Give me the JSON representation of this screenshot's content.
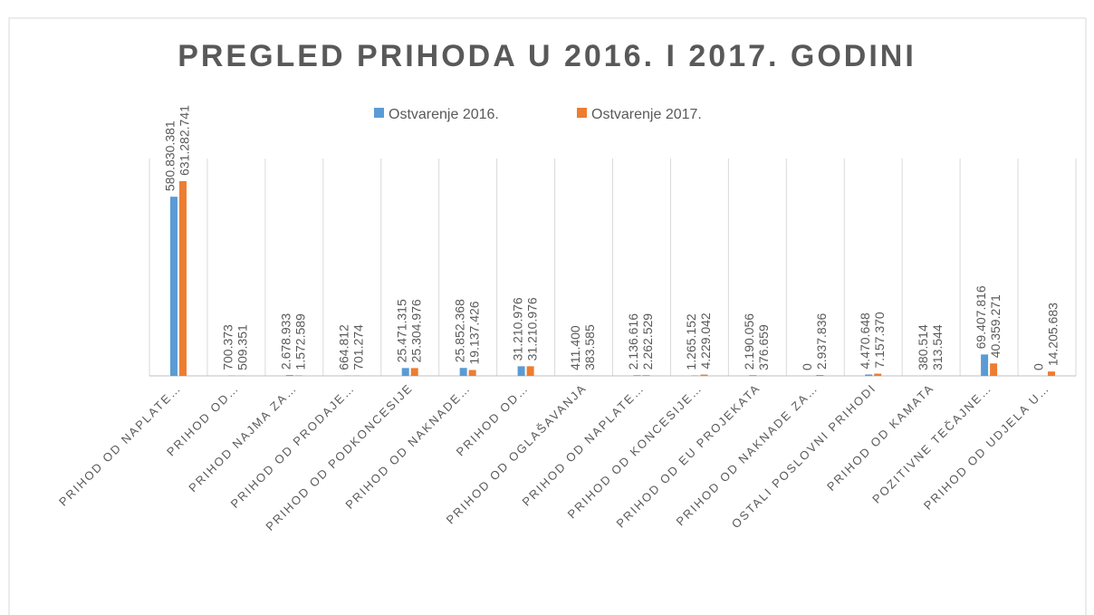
{
  "chart_data": {
    "type": "bar",
    "title": "PREGLED PRIHODA U 2016. I 2017. GODINI",
    "categories": [
      "PRIHOD OD NAPLATE…",
      "PRIHOD OD…",
      "PRIHOD NAJMA ZA…",
      "PRIHOD OD PRODAJE…",
      "PRIHOD OD PODKONCESIJE",
      "PRIHOD OD NAKNADE…",
      "PRIHOD OD…",
      "PRIHOD OD OGLAŠAVANJA",
      "PRIHOD OD NAPLATE…",
      "PRIHOD OD KONCESIJE…",
      "PRIHOD OD EU PROJEKATA",
      "PRIHOD OD NAKNADE ZA…",
      "OSTALI POSLOVNI PRIHODI",
      "PRIHOD OD KAMATA",
      "POZITIVNE TEČAJNE…",
      "PRIHOD OD UDJELA U…"
    ],
    "series": [
      {
        "name": "Ostvarenje 2016.",
        "color": "#5b9bd5",
        "values": [
          580830381,
          700373,
          2678933,
          664812,
          25471315,
          25852368,
          31210976,
          411400,
          2136616,
          1265152,
          2190056,
          0,
          4470648,
          380514,
          69407816,
          0
        ],
        "value_labels": [
          "580.830.381",
          "700.373",
          "2.678.933",
          "664.812",
          "25.471.315",
          "25.852.368",
          "31.210.976",
          "411.400",
          "2.136.616",
          "1.265.152",
          "2.190.056",
          "0",
          "4.470.648",
          "380.514",
          "69.407.816",
          "0"
        ]
      },
      {
        "name": "Ostvarenje 2017.",
        "color": "#ed7d31",
        "values": [
          631282741,
          509351,
          1572589,
          701274,
          25304976,
          19137426,
          31210976,
          383585,
          2262529,
          4229042,
          376659,
          2937836,
          7157370,
          313544,
          40359271,
          14205683
        ],
        "value_labels": [
          "631.282.741",
          "509.351",
          "1.572.589",
          "701.274",
          "25.304.976",
          "19.137.426",
          "31.210.976",
          "383.585",
          "2.262.529",
          "4.229.042",
          "376.659",
          "2.937.836",
          "7.157.370",
          "313.544",
          "40.359.271",
          "14.205.683"
        ]
      }
    ],
    "legend": "top"
  }
}
